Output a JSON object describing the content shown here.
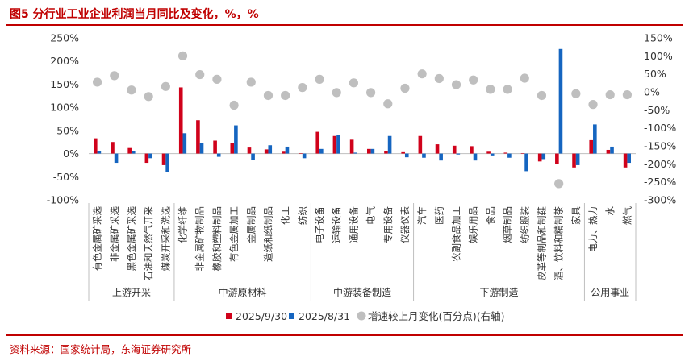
{
  "header": {
    "title": "图5 分行业工业企业利润当月同比及变化，%，%"
  },
  "footer": {
    "source": "资料来源：国家统计局，东海证券研究所"
  },
  "colors": {
    "series1": "#d0021b",
    "series2": "#1565c0",
    "change": "#bfbfbf",
    "title": "#c00000"
  },
  "chart_data": {
    "type": "bar",
    "title": "分行业工业企业利润当月同比及变化，%，%",
    "categories": [
      "有色金属矿采选",
      "非金属矿采选",
      "黑色金属矿采选",
      "石油和天然气开采",
      "煤炭开采和洗选",
      "化学纤维",
      "非金属矿物制品",
      "橡胶和塑料制品",
      "有色金属加工",
      "金属制品",
      "造纸和纸制品",
      "化工",
      "纺织",
      "电子设备",
      "运输设备",
      "通用设备",
      "电气",
      "专用设备",
      "仪器仪表",
      "汽车",
      "医药",
      "农副食品加工",
      "娱乐用品",
      "食品",
      "烟草制品",
      "纺织服装",
      "皮革等制品和制鞋",
      "酒、饮料和精制茶",
      "家具",
      "电力、热力",
      "水",
      "燃气"
    ],
    "groups": [
      {
        "name": "上游开采",
        "count": 5
      },
      {
        "name": "中游原材料",
        "count": 8
      },
      {
        "name": "中游装备制造",
        "count": 6
      },
      {
        "name": "下游制造",
        "count": 10
      },
      {
        "name": "公用事业",
        "count": 3
      }
    ],
    "series": [
      {
        "name": "2025/9/30",
        "type": "bar",
        "axis": "left",
        "values": [
          33,
          25,
          12,
          -20,
          -25,
          143,
          72,
          28,
          23,
          13,
          9,
          4,
          1,
          47,
          38,
          30,
          10,
          6,
          3,
          38,
          20,
          17,
          16,
          4,
          2,
          1,
          -17,
          -23,
          -30,
          29,
          8,
          -30
        ]
      },
      {
        "name": "2025/8/31",
        "type": "bar",
        "axis": "left",
        "values": [
          6,
          -20,
          5,
          -10,
          -40,
          44,
          22,
          -7,
          61,
          -14,
          18,
          15,
          -10,
          10,
          41,
          2,
          10,
          38,
          -8,
          -9,
          -15,
          -2,
          -15,
          -4,
          -9,
          -38,
          -12,
          226,
          -25,
          63,
          15,
          -20
        ]
      },
      {
        "name": "增速较上月变化(百分点)(右轴)",
        "type": "scatter",
        "axis": "right",
        "values": [
          27,
          45,
          5,
          -13,
          15,
          100,
          48,
          35,
          -37,
          27,
          -10,
          -10,
          12,
          35,
          -2,
          25,
          -2,
          -33,
          10,
          50,
          37,
          20,
          33,
          7,
          7,
          38,
          -10,
          -255,
          -5,
          -35,
          -8,
          -8
        ]
      }
    ],
    "y_left": {
      "min": -100,
      "max": 250,
      "ticks": [
        -100,
        -50,
        0,
        50,
        100,
        150,
        200,
        250
      ],
      "labels": [
        "-100%",
        "-50%",
        "0%",
        "50%",
        "100%",
        "150%",
        "200%",
        "250%"
      ]
    },
    "y_right": {
      "min": -300,
      "max": 150,
      "ticks": [
        -300,
        -250,
        -200,
        -150,
        -100,
        -50,
        0,
        50,
        100,
        150
      ],
      "labels": [
        "-300%",
        "-250%",
        "-200%",
        "-150%",
        "-100%",
        "-50%",
        "0%",
        "50%",
        "100%",
        "150%"
      ]
    },
    "legend": [
      {
        "label": "2025/9/30",
        "marker": "square"
      },
      {
        "label": "2025/8/31",
        "marker": "square"
      },
      {
        "label": "增速较上月变化(百分点)(右轴)",
        "marker": "circle"
      }
    ]
  }
}
